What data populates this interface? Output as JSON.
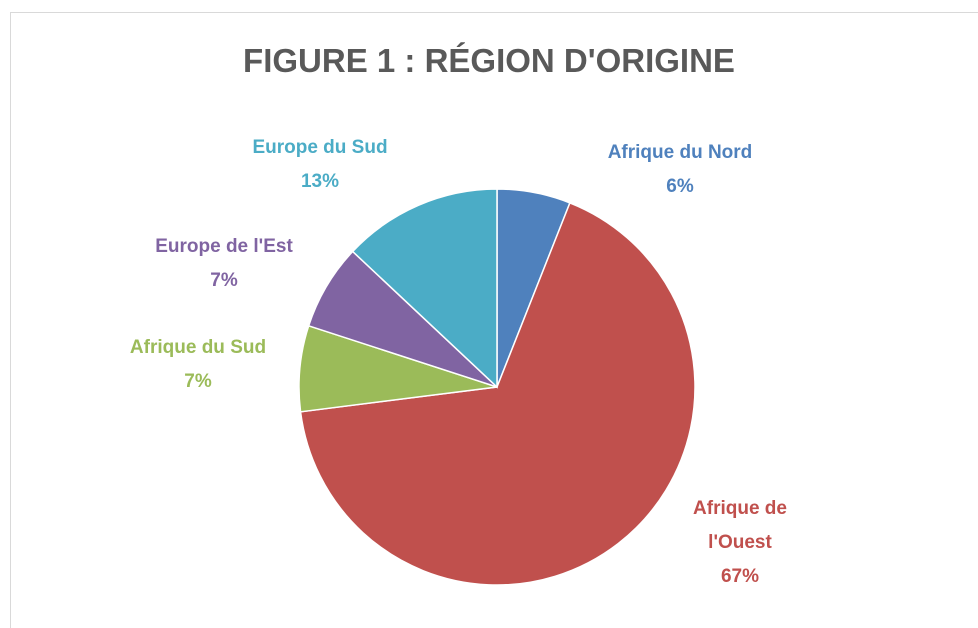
{
  "chart_data": {
    "type": "pie",
    "title": "FIGURE 1 : RÉGION D'ORIGINE",
    "categories": [
      "Afrique du Nord",
      "Afrique de l'Ouest",
      "Afrique du Sud",
      "Europe de l'Est",
      "Europe du Sud"
    ],
    "values": [
      6,
      67,
      7,
      7,
      13
    ],
    "value_labels": [
      "6%",
      "67%",
      "7%",
      "7%",
      "13%"
    ],
    "colors": [
      "#4f81bd",
      "#c0504d",
      "#9bbb59",
      "#8064a2",
      "#4bacc6"
    ]
  }
}
